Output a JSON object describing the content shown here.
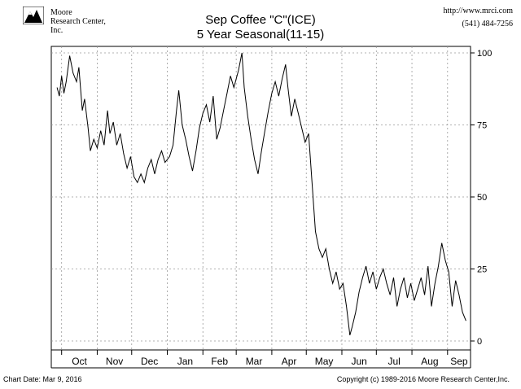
{
  "header": {
    "logo_line1": "Moore",
    "logo_line2": "Research Center, Inc.",
    "url": "http://www.mrci.com",
    "phone": "(541) 484-7256"
  },
  "footer": {
    "chart_date": "Chart Date: Mar 9, 2016",
    "copyright": "Copyright (c) 1989-2016 Moore Research Center,Inc."
  },
  "chart_data": {
    "type": "line",
    "title": "Sep Coffee \"C\"(ICE)",
    "subtitle": "5 Year Seasonal(11-15)",
    "xlabel": "",
    "ylabel": "",
    "ylim": [
      0,
      100
    ],
    "yticks": [
      0,
      25,
      50,
      75,
      100
    ],
    "x_ticks": [
      "Oct",
      "Nov",
      "Dec",
      "Jan",
      "Feb",
      "Mar",
      "Apr",
      "May",
      "Jun",
      "Jul",
      "Aug",
      "Sep"
    ],
    "grid": true,
    "series": [
      {
        "points": [
          {
            "x": "Sep 27",
            "y": 88
          },
          {
            "x": "Sep 29",
            "y": 85
          },
          {
            "x": "Oct 1",
            "y": 92
          },
          {
            "x": "Oct 3",
            "y": 86
          },
          {
            "x": "Oct 5",
            "y": 90
          },
          {
            "x": "Oct 8",
            "y": 99
          },
          {
            "x": "Oct 11",
            "y": 93
          },
          {
            "x": "Oct 14",
            "y": 90
          },
          {
            "x": "Oct 16",
            "y": 95
          },
          {
            "x": "Oct 19",
            "y": 80
          },
          {
            "x": "Oct 21",
            "y": 84
          },
          {
            "x": "Oct 24",
            "y": 74
          },
          {
            "x": "Oct 26",
            "y": 66
          },
          {
            "x": "Oct 29",
            "y": 70
          },
          {
            "x": "Nov 1",
            "y": 67
          },
          {
            "x": "Nov 4",
            "y": 73
          },
          {
            "x": "Nov 7",
            "y": 68
          },
          {
            "x": "Nov 10",
            "y": 80
          },
          {
            "x": "Nov 12",
            "y": 72
          },
          {
            "x": "Nov 15",
            "y": 76
          },
          {
            "x": "Nov 18",
            "y": 68
          },
          {
            "x": "Nov 21",
            "y": 72
          },
          {
            "x": "Nov 24",
            "y": 65
          },
          {
            "x": "Nov 27",
            "y": 60
          },
          {
            "x": "Nov 30",
            "y": 64
          },
          {
            "x": "Dec 3",
            "y": 57
          },
          {
            "x": "Dec 6",
            "y": 55
          },
          {
            "x": "Dec 9",
            "y": 58
          },
          {
            "x": "Dec 12",
            "y": 55
          },
          {
            "x": "Dec 15",
            "y": 60
          },
          {
            "x": "Dec 18",
            "y": 63
          },
          {
            "x": "Dec 21",
            "y": 58
          },
          {
            "x": "Dec 24",
            "y": 63
          },
          {
            "x": "Dec 27",
            "y": 66
          },
          {
            "x": "Dec 30",
            "y": 62
          },
          {
            "x": "Jan 3",
            "y": 64
          },
          {
            "x": "Jan 6",
            "y": 68
          },
          {
            "x": "Jan 9",
            "y": 80
          },
          {
            "x": "Jan 11",
            "y": 87
          },
          {
            "x": "Jan 14",
            "y": 75
          },
          {
            "x": "Jan 17",
            "y": 70
          },
          {
            "x": "Jan 20",
            "y": 64
          },
          {
            "x": "Jan 23",
            "y": 59
          },
          {
            "x": "Jan 26",
            "y": 66
          },
          {
            "x": "Jan 29",
            "y": 74
          },
          {
            "x": "Feb 1",
            "y": 79
          },
          {
            "x": "Feb 4",
            "y": 82
          },
          {
            "x": "Feb 7",
            "y": 76
          },
          {
            "x": "Feb 10",
            "y": 85
          },
          {
            "x": "Feb 13",
            "y": 70
          },
          {
            "x": "Feb 16",
            "y": 74
          },
          {
            "x": "Feb 19",
            "y": 80
          },
          {
            "x": "Feb 22",
            "y": 86
          },
          {
            "x": "Feb 25",
            "y": 92
          },
          {
            "x": "Feb 28",
            "y": 88
          },
          {
            "x": "Mar 3",
            "y": 94
          },
          {
            "x": "Mar 6",
            "y": 100
          },
          {
            "x": "Mar 8",
            "y": 88
          },
          {
            "x": "Mar 11",
            "y": 78
          },
          {
            "x": "Mar 14",
            "y": 70
          },
          {
            "x": "Mar 17",
            "y": 63
          },
          {
            "x": "Mar 20",
            "y": 58
          },
          {
            "x": "Mar 23",
            "y": 66
          },
          {
            "x": "Mar 26",
            "y": 73
          },
          {
            "x": "Mar 29",
            "y": 80
          },
          {
            "x": "Apr 1",
            "y": 86
          },
          {
            "x": "Apr 4",
            "y": 90
          },
          {
            "x": "Apr 7",
            "y": 85
          },
          {
            "x": "Apr 10",
            "y": 91
          },
          {
            "x": "Apr 13",
            "y": 96
          },
          {
            "x": "Apr 15",
            "y": 88
          },
          {
            "x": "Apr 18",
            "y": 78
          },
          {
            "x": "Apr 21",
            "y": 84
          },
          {
            "x": "Apr 24",
            "y": 79
          },
          {
            "x": "Apr 27",
            "y": 74
          },
          {
            "x": "Apr 30",
            "y": 69
          },
          {
            "x": "May 3",
            "y": 72
          },
          {
            "x": "May 6",
            "y": 55
          },
          {
            "x": "May 9",
            "y": 38
          },
          {
            "x": "May 12",
            "y": 32
          },
          {
            "x": "May 15",
            "y": 29
          },
          {
            "x": "May 18",
            "y": 32
          },
          {
            "x": "May 21",
            "y": 25
          },
          {
            "x": "May 24",
            "y": 20
          },
          {
            "x": "May 27",
            "y": 24
          },
          {
            "x": "May 30",
            "y": 18
          },
          {
            "x": "Jun 2",
            "y": 20
          },
          {
            "x": "Jun 5",
            "y": 12
          },
          {
            "x": "Jun 8",
            "y": 2
          },
          {
            "x": "Jun 10",
            "y": 5
          },
          {
            "x": "Jun 13",
            "y": 10
          },
          {
            "x": "Jun 16",
            "y": 17
          },
          {
            "x": "Jun 19",
            "y": 22
          },
          {
            "x": "Jun 22",
            "y": 26
          },
          {
            "x": "Jun 25",
            "y": 20
          },
          {
            "x": "Jun 28",
            "y": 24
          },
          {
            "x": "Jul 1",
            "y": 18
          },
          {
            "x": "Jul 4",
            "y": 22
          },
          {
            "x": "Jul 7",
            "y": 25
          },
          {
            "x": "Jul 10",
            "y": 20
          },
          {
            "x": "Jul 13",
            "y": 16
          },
          {
            "x": "Jul 16",
            "y": 22
          },
          {
            "x": "Jul 19",
            "y": 12
          },
          {
            "x": "Jul 22",
            "y": 18
          },
          {
            "x": "Jul 25",
            "y": 22
          },
          {
            "x": "Jul 28",
            "y": 15
          },
          {
            "x": "Jul 31",
            "y": 20
          },
          {
            "x": "Aug 3",
            "y": 14
          },
          {
            "x": "Aug 6",
            "y": 18
          },
          {
            "x": "Aug 9",
            "y": 22
          },
          {
            "x": "Aug 12",
            "y": 16
          },
          {
            "x": "Aug 15",
            "y": 26
          },
          {
            "x": "Aug 18",
            "y": 12
          },
          {
            "x": "Aug 21",
            "y": 20
          },
          {
            "x": "Aug 24",
            "y": 26
          },
          {
            "x": "Aug 27",
            "y": 34
          },
          {
            "x": "Aug 30",
            "y": 28
          },
          {
            "x": "Sep 2",
            "y": 24
          },
          {
            "x": "Sep 5",
            "y": 12
          },
          {
            "x": "Sep 8",
            "y": 21
          },
          {
            "x": "Sep 11",
            "y": 16
          },
          {
            "x": "Sep 14",
            "y": 10
          },
          {
            "x": "Sep 17",
            "y": 7
          }
        ]
      }
    ]
  }
}
